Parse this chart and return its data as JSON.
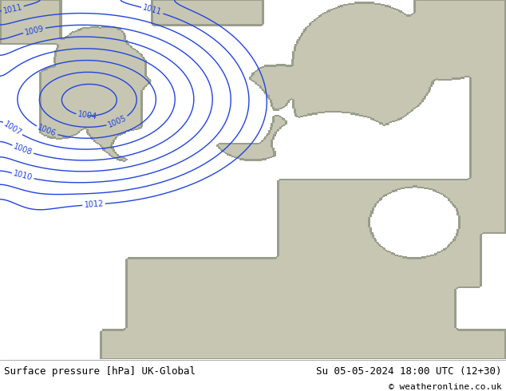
{
  "title_left": "Surface pressure [hPa] UK-Global",
  "title_right": "Su 05-05-2024 18:00 UTC (12+30)",
  "copyright": "© weatheronline.co.uk",
  "bg_color": "#b0e070",
  "land_color": "#c8c8b4",
  "contour_color": "#2244dd",
  "contour_linewidth": 1.0,
  "label_fontsize": 7.0,
  "footer_fontsize": 9,
  "figsize": [
    6.34,
    4.9
  ],
  "dpi": 100
}
